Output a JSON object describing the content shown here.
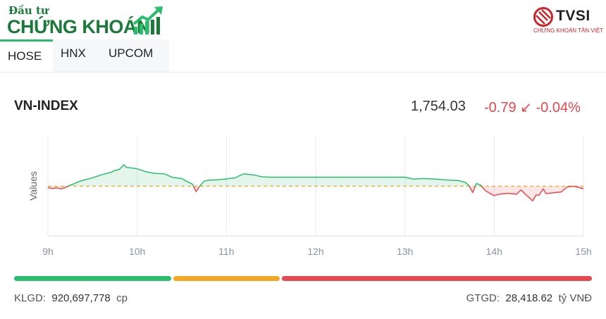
{
  "header": {
    "logo_small": "Đầu tư",
    "logo_big": "CHỨNG KHOÁN",
    "brand_name": "TVSI",
    "brand_sub": "CHỨNG KHOÁN TÂN VIỆT"
  },
  "tabs": [
    {
      "label": "HOSE",
      "active": true
    },
    {
      "label": "HNX",
      "active": false
    },
    {
      "label": "UPCOM",
      "active": false
    }
  ],
  "index": {
    "name": "VN-INDEX",
    "value": "1,754.03",
    "change": "-0.79",
    "arrow": "↙",
    "change_pct": "-0.04%"
  },
  "chart_data": {
    "type": "area",
    "ylabel": "Values",
    "x_ticks": [
      "9h",
      "10h",
      "11h",
      "12h",
      "13h",
      "14h",
      "15h"
    ],
    "reference": 1754.82,
    "ylim": [
      1740,
      1770
    ],
    "grid": true,
    "series": [
      {
        "points": [
          [
            9.0,
            1754.4
          ],
          [
            9.05,
            1754.1
          ],
          [
            9.1,
            1754.3
          ],
          [
            9.15,
            1754.0
          ],
          [
            9.2,
            1754.5
          ],
          [
            9.25,
            1755.1
          ],
          [
            9.3,
            1755.6
          ],
          [
            9.35,
            1756.2
          ],
          [
            9.4,
            1756.6
          ],
          [
            9.5,
            1757.3
          ],
          [
            9.6,
            1758.2
          ],
          [
            9.7,
            1758.9
          ],
          [
            9.75,
            1759.5
          ],
          [
            9.8,
            1759.8
          ],
          [
            9.85,
            1761.2
          ],
          [
            9.88,
            1760.4
          ],
          [
            9.95,
            1760.2
          ],
          [
            10.0,
            1760.0
          ],
          [
            10.1,
            1759.1
          ],
          [
            10.2,
            1758.6
          ],
          [
            10.3,
            1758.5
          ],
          [
            10.4,
            1757.4
          ],
          [
            10.5,
            1757.1
          ],
          [
            10.55,
            1756.3
          ],
          [
            10.62,
            1755.4
          ],
          [
            10.66,
            1753.2
          ],
          [
            10.7,
            1754.8
          ],
          [
            10.75,
            1756.3
          ],
          [
            10.8,
            1756.6
          ],
          [
            10.9,
            1756.7
          ],
          [
            11.0,
            1757.0
          ],
          [
            11.1,
            1757.3
          ],
          [
            11.15,
            1758.0
          ],
          [
            11.2,
            1758.5
          ],
          [
            11.25,
            1758.3
          ],
          [
            11.3,
            1758.2
          ],
          [
            11.35,
            1757.9
          ],
          [
            11.4,
            1757.6
          ],
          [
            11.5,
            1757.5
          ],
          [
            12.0,
            1757.5
          ],
          [
            12.5,
            1757.5
          ],
          [
            13.0,
            1757.5
          ],
          [
            13.1,
            1756.9
          ],
          [
            13.2,
            1757.1
          ],
          [
            13.35,
            1756.9
          ],
          [
            13.5,
            1756.6
          ],
          [
            13.6,
            1756.5
          ],
          [
            13.68,
            1755.9
          ],
          [
            13.72,
            1754.9
          ],
          [
            13.76,
            1752.9
          ],
          [
            13.8,
            1755.6
          ],
          [
            13.85,
            1755.1
          ],
          [
            13.9,
            1753.5
          ],
          [
            13.95,
            1752.7
          ],
          [
            14.0,
            1752.0
          ],
          [
            14.05,
            1752.4
          ],
          [
            14.15,
            1752.7
          ],
          [
            14.25,
            1752.4
          ],
          [
            14.3,
            1753.7
          ],
          [
            14.35,
            1752.4
          ],
          [
            14.4,
            1751.2
          ],
          [
            14.43,
            1750.4
          ],
          [
            14.47,
            1752.2
          ],
          [
            14.5,
            1752.1
          ],
          [
            14.55,
            1754.0
          ],
          [
            14.58,
            1752.6
          ],
          [
            14.65,
            1752.8
          ],
          [
            14.75,
            1753.1
          ],
          [
            14.82,
            1754.6
          ],
          [
            14.9,
            1754.8
          ],
          [
            15.0,
            1754.03
          ]
        ]
      }
    ]
  },
  "breadth": {
    "up_pct": 27.6,
    "flat_pct": 18.8,
    "down_pct": 53.6,
    "up_color": "#2bbd6e",
    "flat_color": "#f5a623",
    "down_color": "#e5484d"
  },
  "footer": {
    "klgd_label": "KLGD:",
    "klgd_value": "920,697,778",
    "klgd_unit": "cp",
    "gtgd_label": "GTGD:",
    "gtgd_value": "28,418.62",
    "gtgd_unit": "tỷ VNĐ"
  }
}
